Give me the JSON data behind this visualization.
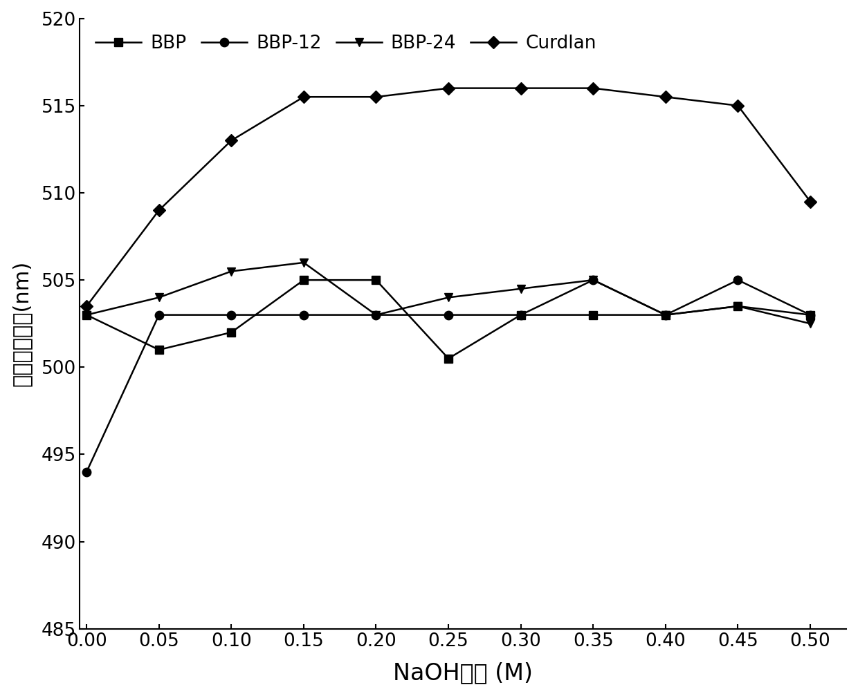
{
  "x": [
    0.0,
    0.05,
    0.1,
    0.15,
    0.2,
    0.25,
    0.3,
    0.35,
    0.4,
    0.45,
    0.5
  ],
  "BBP": [
    503,
    501,
    502,
    505,
    505,
    500.5,
    503,
    503,
    503,
    503.5,
    503
  ],
  "BBP_12": [
    494,
    503,
    503,
    503,
    503,
    503,
    503,
    505,
    503,
    505,
    503
  ],
  "BBP_24": [
    503,
    504,
    505.5,
    506,
    503,
    504,
    504.5,
    505,
    503,
    503.5,
    502.5
  ],
  "Curdlan": [
    503.5,
    509,
    513,
    515.5,
    515.5,
    516,
    516,
    516,
    515.5,
    515,
    509.5
  ],
  "xlabel": "NaOH浓度 (M)",
  "ylabel": "最大吸收波长(nm)",
  "xlim": [
    -0.005,
    0.525
  ],
  "ylim": [
    485,
    520
  ],
  "yticks": [
    485,
    490,
    495,
    500,
    505,
    510,
    515,
    520
  ],
  "xticks": [
    0.0,
    0.05,
    0.1,
    0.15,
    0.2,
    0.25,
    0.3,
    0.35,
    0.4,
    0.45,
    0.5
  ],
  "line_color": "#000000",
  "legend_labels": [
    "BBP",
    "BBP-12",
    "BBP-24",
    "Curdlan"
  ],
  "markers": [
    "s",
    "o",
    "v",
    "D"
  ],
  "markersize": 9,
  "linewidth": 1.8,
  "xlabel_fontsize": 24,
  "ylabel_fontsize": 22,
  "tick_fontsize": 19,
  "legend_fontsize": 19
}
